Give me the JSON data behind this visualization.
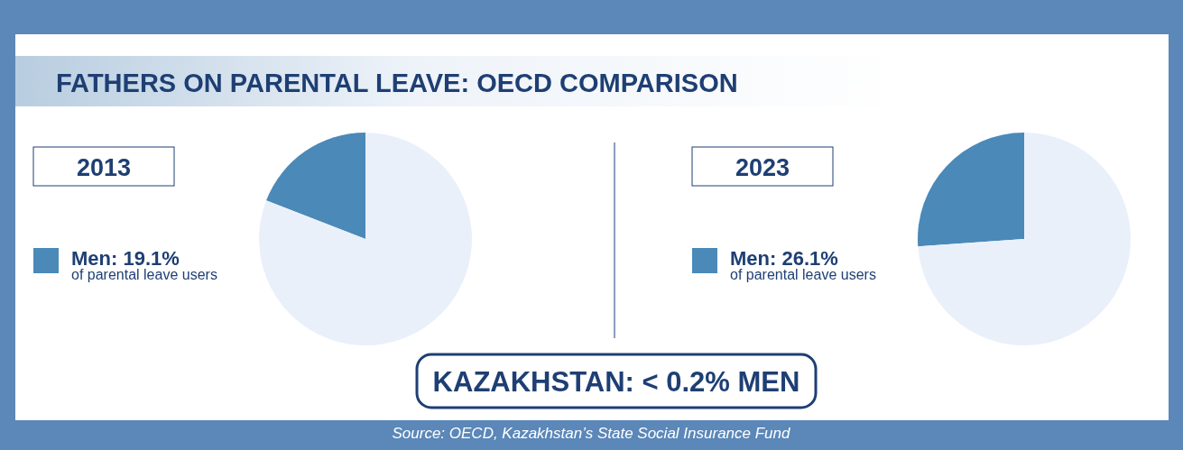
{
  "chart_data": [
    {
      "type": "other",
      "title": "FATHERS ON PARENTAL LEAVE: OECD COMPARISON",
      "annotations": [
        "KAZAKHSTAN: < 0.2% MEN",
        "Source: OECD, Kazakhstan’s State Social Insurance Fund"
      ]
    },
    {
      "type": "pie",
      "title": "2013",
      "categories": [
        "Men: 19.1%",
        null
      ],
      "values": [
        19.1,
        80.9
      ],
      "colors": [
        "#4a89b8",
        "#eaf0fa"
      ],
      "legend": "left",
      "annotations": [
        "of parental leave users"
      ]
    },
    {
      "type": "pie",
      "title": "2023",
      "categories": [
        "Men: 26.1%",
        null
      ],
      "values": [
        26.1,
        73.9
      ],
      "colors": [
        "#4a89b8",
        "#eaf0fa"
      ],
      "legend": "left",
      "annotations": [
        "of parental leave users"
      ]
    }
  ]
}
